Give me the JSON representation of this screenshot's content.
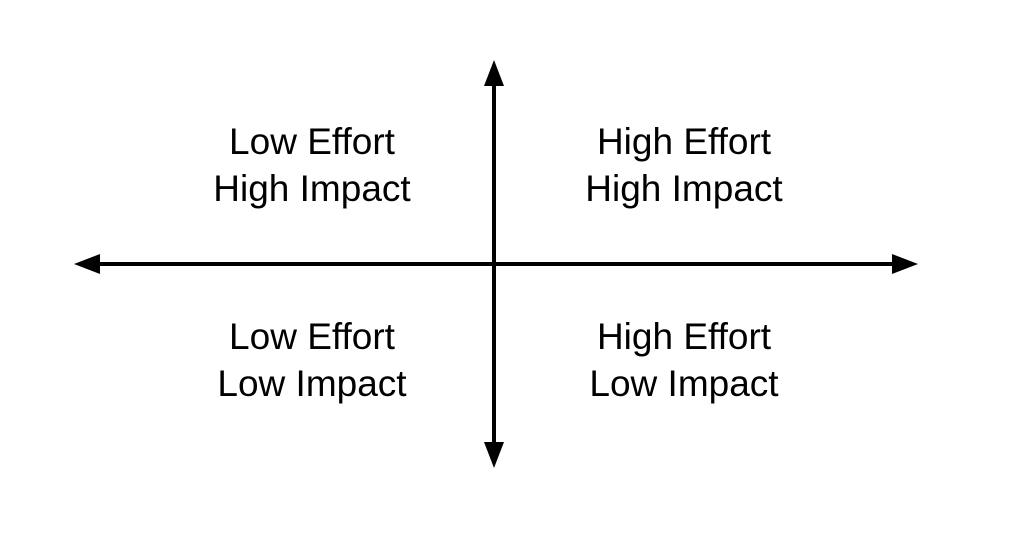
{
  "quadrants": {
    "top_left": {
      "line1": "Low Effort",
      "line2": "High Impact"
    },
    "top_right": {
      "line1": "High Effort",
      "line2": "High Impact"
    },
    "bottom_left": {
      "line1": "Low Effort",
      "line2": "Low Impact"
    },
    "bottom_right": {
      "line1": "High Effort",
      "line2": "Low Impact"
    }
  },
  "colors": {
    "axis": "#000000",
    "text": "#000000",
    "background": "#ffffff"
  }
}
